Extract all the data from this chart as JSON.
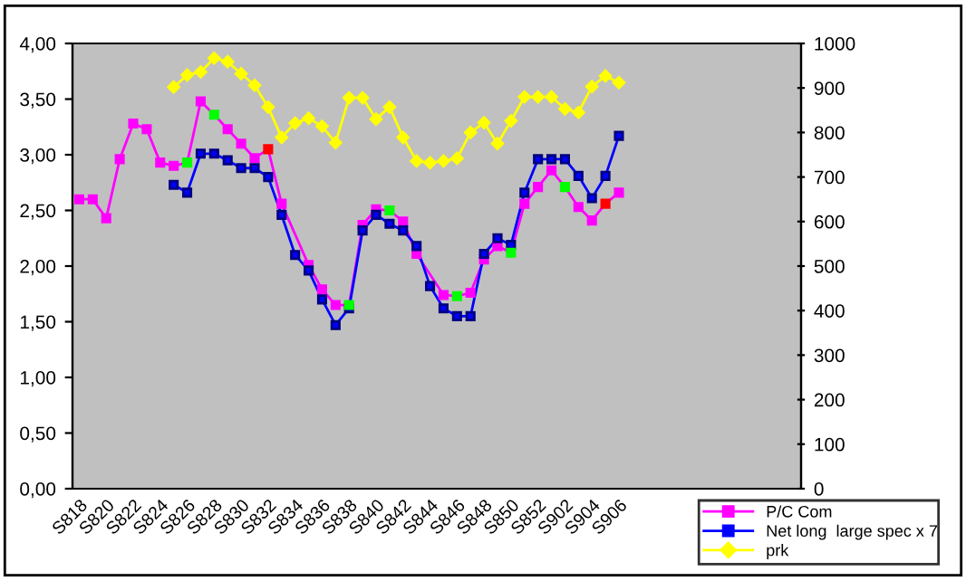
{
  "chart_data": {
    "type": "line",
    "categories": [
      "S818",
      null,
      "S820",
      null,
      "S822",
      null,
      "S824",
      null,
      "S826",
      null,
      "S828",
      null,
      "S830",
      null,
      "S832",
      null,
      "S834",
      null,
      "S836",
      null,
      "S838",
      null,
      "S840",
      null,
      "S842",
      null,
      "S844",
      null,
      "S846",
      null,
      "S848",
      null,
      "S850",
      null,
      "S852",
      null,
      "S902",
      null,
      "S904",
      null,
      "S906",
      null,
      null,
      null,
      null,
      null,
      null,
      null,
      null,
      null,
      null,
      null,
      null,
      null
    ],
    "series": [
      {
        "name": "P/C Com",
        "color": "#ff00ff",
        "marker": "square",
        "values": [
          2.6,
          2.6,
          2.43,
          2.96,
          3.28,
          3.23,
          2.93,
          2.9,
          2.93,
          3.48,
          3.36,
          3.23,
          3.1,
          2.97,
          3.05,
          2.56,
          null,
          2.01,
          1.79,
          1.65,
          1.65,
          2.37,
          2.51,
          2.5,
          2.4,
          2.11,
          null,
          1.74,
          1.73,
          1.76,
          2.06,
          2.18,
          2.12,
          2.56,
          2.71,
          2.86,
          2.71,
          2.53,
          2.41,
          2.56,
          2.66,
          null,
          null,
          null,
          null,
          null,
          null,
          null,
          null,
          null,
          null,
          null,
          null,
          null
        ],
        "colors": [
          "#ff00ff",
          "#ff00ff",
          "#ff00ff",
          "#ff00ff",
          "#ff00ff",
          "#ff00ff",
          "#ff00ff",
          "#ff00ff",
          "#00ff00",
          "#ff00ff",
          "#00ff00",
          "#ff00ff",
          "#ff00ff",
          "#ff00ff",
          "#ff0000",
          "#ff00ff",
          "#ff00ff",
          "#ff00ff",
          "#ff00ff",
          "#ff00ff",
          "#00ff00",
          "#ff00ff",
          "#ff00ff",
          "#00ff00",
          "#ff00ff",
          "#ff00ff",
          "#ff00ff",
          "#ff00ff",
          "#00ff00",
          "#ff00ff",
          "#ff00ff",
          "#ff00ff",
          "#00ff00",
          "#ff00ff",
          "#ff00ff",
          "#ff00ff",
          "#00ff00",
          "#ff00ff",
          "#ff00ff",
          "#ff0000",
          "#ff00ff",
          "#ff00ff",
          "#ff00ff",
          "#ff00ff",
          "#ff00ff",
          "#ff00ff",
          "#ff00ff",
          "#ff00ff",
          "#ff00ff",
          "#ff00ff",
          "#ff00ff",
          "#ff00ff",
          "#ff00ff",
          "#ff00ff"
        ]
      },
      {
        "name": "Net long  large spec x 7",
        "color": "#0000ff",
        "marker": "square",
        "values": [
          null,
          null,
          null,
          null,
          null,
          null,
          null,
          2.73,
          2.66,
          3.01,
          3.01,
          2.95,
          2.88,
          2.88,
          2.8,
          2.46,
          2.1,
          1.96,
          1.7,
          1.47,
          1.62,
          2.32,
          2.46,
          2.38,
          2.32,
          2.18,
          1.82,
          1.62,
          1.55,
          1.55,
          2.11,
          2.25,
          2.19,
          2.66,
          2.96,
          2.96,
          2.96,
          2.81,
          2.61,
          2.81,
          3.17,
          null,
          null,
          null,
          null,
          null,
          null,
          null,
          null,
          null,
          null,
          null,
          null,
          null
        ]
      },
      {
        "name": "prk",
        "color": "#ffff00",
        "marker": "diamond",
        "axis": "y2",
        "values": [
          null,
          null,
          null,
          null,
          null,
          null,
          null,
          902,
          929,
          936,
          967,
          959,
          932,
          906,
          857,
          789,
          821,
          832,
          814,
          777,
          878,
          878,
          830,
          857,
          789,
          736,
          732,
          736,
          742,
          800,
          822,
          775,
          826,
          880,
          880,
          880,
          853,
          845,
          903,
          927,
          912,
          null,
          null,
          null,
          null,
          null,
          null,
          null,
          null,
          null,
          null,
          null,
          null,
          null
        ]
      }
    ],
    "ylim": [
      0,
      4
    ],
    "yticks": [
      {
        "value": 0,
        "label": "0,00"
      },
      {
        "value": 0.5,
        "label": "0,50"
      },
      {
        "value": 1,
        "label": "1,00"
      },
      {
        "value": 1.5,
        "label": "1,50"
      },
      {
        "value": 2,
        "label": "2,00"
      },
      {
        "value": 2.5,
        "label": "2,50"
      },
      {
        "value": 3,
        "label": "3,00"
      },
      {
        "value": 3.5,
        "label": "3,50"
      },
      {
        "value": 4,
        "label": "4,00"
      }
    ],
    "y2lim": [
      0,
      1000
    ],
    "y2ticks": [
      0,
      100,
      200,
      300,
      400,
      500,
      600,
      700,
      800,
      900,
      1000
    ],
    "grid": false,
    "legend": "bottom right"
  }
}
